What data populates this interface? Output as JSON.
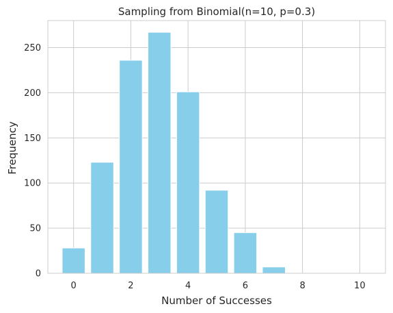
{
  "chart_data": {
    "type": "bar",
    "title": "Sampling from Binomial(n=10, p=0.3)",
    "xlabel": "Number of Successes",
    "ylabel": "Frequency",
    "categories": [
      0,
      1,
      2,
      3,
      4,
      5,
      6,
      7,
      8,
      9,
      10
    ],
    "values": [
      28,
      123,
      236,
      267,
      201,
      92,
      45,
      7,
      0,
      0,
      0
    ],
    "xlim": [
      -0.9,
      10.9
    ],
    "ylim": [
      0,
      280
    ],
    "xticks": [
      0,
      2,
      4,
      6,
      8,
      10
    ],
    "yticks": [
      0,
      50,
      100,
      150,
      200,
      250
    ],
    "bar_color": "#87CEEB",
    "grid": true,
    "legend": "none"
  }
}
